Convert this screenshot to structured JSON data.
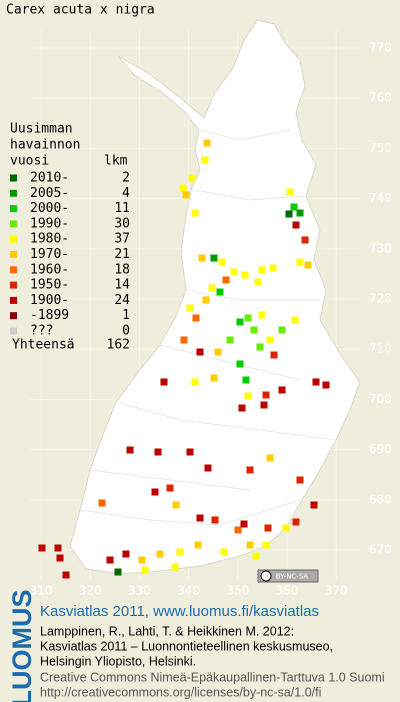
{
  "title": "Carex acuta x nigra",
  "legend": {
    "heading": [
      "Uusimman",
      "havainnon",
      "vuosi"
    ],
    "count_heading": "lkm",
    "rows": [
      {
        "label": "2010-",
        "count": "2",
        "color": "#006600"
      },
      {
        "label": "2005-",
        "count": "4",
        "color": "#009900"
      },
      {
        "label": "2000-",
        "count": "11",
        "color": "#00cc00"
      },
      {
        "label": "1990-",
        "count": "30",
        "color": "#66ee00"
      },
      {
        "label": "1980-",
        "count": "37",
        "color": "#ffff00"
      },
      {
        "label": "1970-",
        "count": "21",
        "color": "#ffcc00"
      },
      {
        "label": "1960-",
        "count": "18",
        "color": "#ff6600"
      },
      {
        "label": "1950-",
        "count": "14",
        "color": "#dd2200"
      },
      {
        "label": "1900-",
        "count": "24",
        "color": "#bb0000"
      },
      {
        "label": "-1899",
        "count": "1",
        "color": "#800000"
      },
      {
        "label": "???",
        "count": "0",
        "color": "#cccccc"
      }
    ],
    "total_label": "Yhteensä",
    "total": "162"
  },
  "grid": {
    "northing": [
      "770",
      "760",
      "750",
      "740",
      "730",
      "720",
      "710",
      "700",
      "690",
      "680",
      "670"
    ],
    "easting": [
      "310",
      "320",
      "330",
      "340",
      "350",
      "360",
      "370"
    ]
  },
  "badge": "BY-NC-SA",
  "footer": {
    "logo": "LUOMUS",
    "headline": "Kasviatlas 2011, www.luomus.fi/kasviatlas",
    "citation": [
      "Lamppinen, R., Lahti, T. & Heikkinen M. 2012:",
      "Kasviatlas 2011 – Luonnontieteellinen keskusmuseo,",
      "Helsingin Yliopisto, Helsinki."
    ],
    "license": [
      "Creative Commons Nimeä-Epäkaupallinen-Tarttuva 1.0 Suomi",
      "http://creativecommons.org/licenses/by-nc-sa/1.0/fi"
    ]
  }
}
